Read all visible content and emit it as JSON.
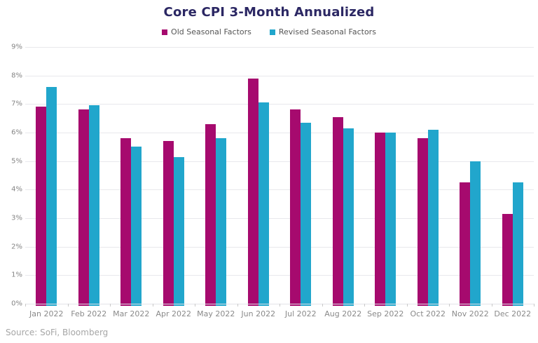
{
  "title": "Core CPI 3-Month Annualized",
  "source_note": "Source: SoFi, Bloomberg",
  "colors": {
    "title_text": "#2B2763",
    "old_series": "#A60A6E",
    "revised_series": "#21A6CC",
    "gridline": "#E8E8EC",
    "axis_text": "#858585",
    "legend_text": "#555555",
    "source_text": "#A6A6A6"
  },
  "chart_data": {
    "type": "bar",
    "title": "Core CPI 3-Month Annualized",
    "xlabel": "",
    "ylabel": "",
    "ylim": [
      0,
      9
    ],
    "ytick_step": 1,
    "ytick_suffix": "%",
    "grid": true,
    "legend_position": "top",
    "categories": [
      "Jan 2022",
      "Feb 2022",
      "Mar 2022",
      "Apr 2022",
      "May 2022",
      "Jun 2022",
      "Jul 2022",
      "Aug 2022",
      "Sep 2022",
      "Oct 2022",
      "Nov 2022",
      "Dec 2022"
    ],
    "series": [
      {
        "name": "Old Seasonal Factors",
        "color": "#A60A6E",
        "values": [
          6.9,
          6.8,
          5.8,
          5.7,
          6.3,
          7.9,
          6.8,
          6.55,
          6.0,
          5.8,
          4.25,
          3.15
        ]
      },
      {
        "name": "Revised Seasonal Factors",
        "color": "#21A6CC",
        "values": [
          7.6,
          6.95,
          5.5,
          5.15,
          5.8,
          7.05,
          6.35,
          6.15,
          6.0,
          6.1,
          5.0,
          4.25
        ]
      }
    ]
  }
}
